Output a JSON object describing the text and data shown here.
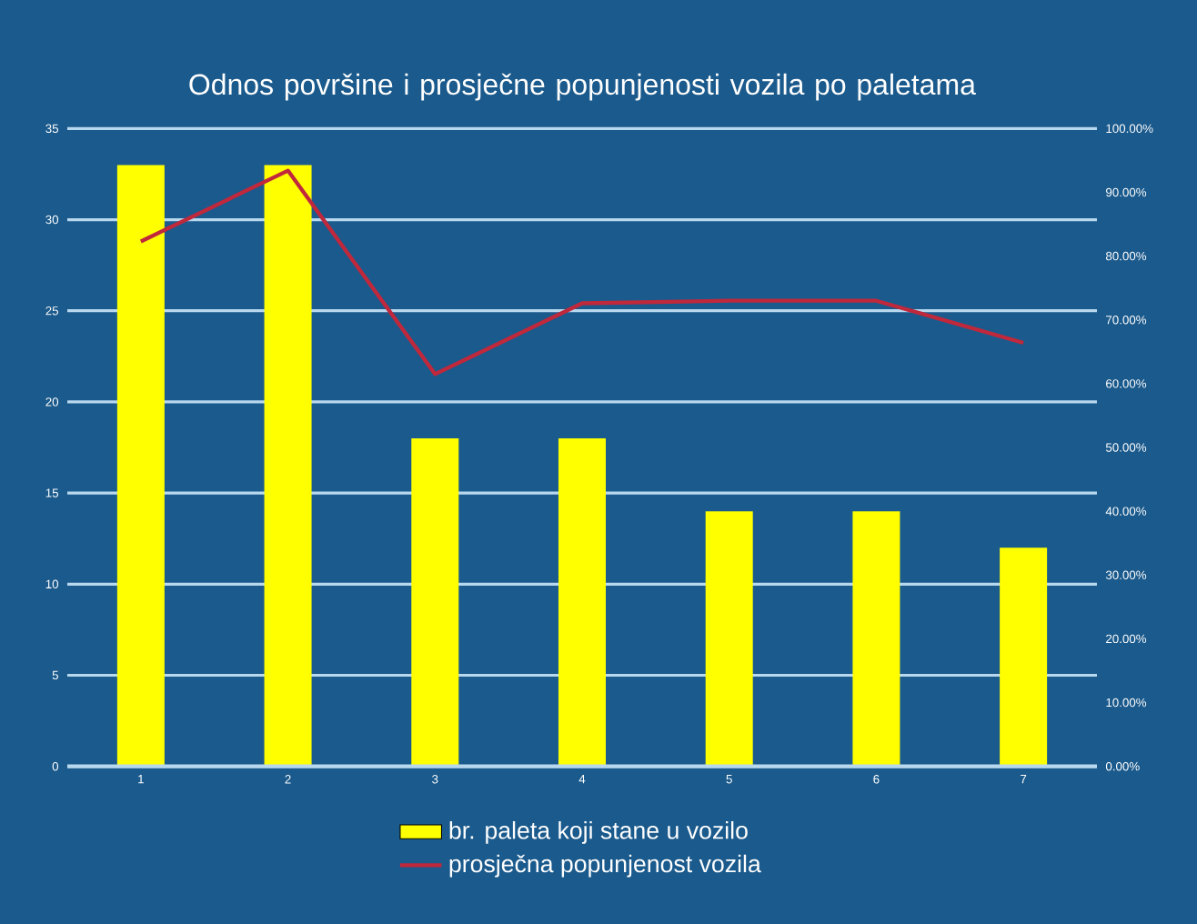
{
  "chart_data": {
    "type": "bar",
    "title": "Odnos površine i prosječne popunjenosti vozila po paletama",
    "categories": [
      "1",
      "2",
      "3",
      "4",
      "5",
      "6",
      "7"
    ],
    "series": [
      {
        "name": "br. paleta koji stane u vozilo",
        "color": "#ffff00",
        "values": [
          33,
          33,
          18,
          18,
          14,
          14,
          12
        ]
      },
      {
        "name": "prosječna popunjenost vozila",
        "color": "#c0283c",
        "type": "line",
        "axis": "y2",
        "values": [
          82.3,
          93.4,
          61.5,
          72.6,
          73,
          73,
          66.4
        ]
      }
    ],
    "ylim": [
      0,
      35
    ],
    "yticks": [
      0,
      5,
      10,
      15,
      20,
      25,
      30,
      35
    ],
    "y2lim": [
      0,
      100
    ],
    "y2ticks": [
      {
        "value": 0,
        "label": "0.00%"
      },
      {
        "value": 10,
        "label": "10.00%"
      },
      {
        "value": 20,
        "label": "20.00%"
      },
      {
        "value": 30,
        "label": "30.00%"
      },
      {
        "value": 40,
        "label": "40.00%"
      },
      {
        "value": 50,
        "label": "50.00%"
      },
      {
        "value": 60,
        "label": "60.00%"
      },
      {
        "value": 70,
        "label": "70.00%"
      },
      {
        "value": 80,
        "label": "80.00%"
      },
      {
        "value": 90,
        "label": "90.00%"
      },
      {
        "value": 100,
        "label": "100.00%"
      }
    ],
    "grid": "y",
    "legend": "bottom"
  }
}
